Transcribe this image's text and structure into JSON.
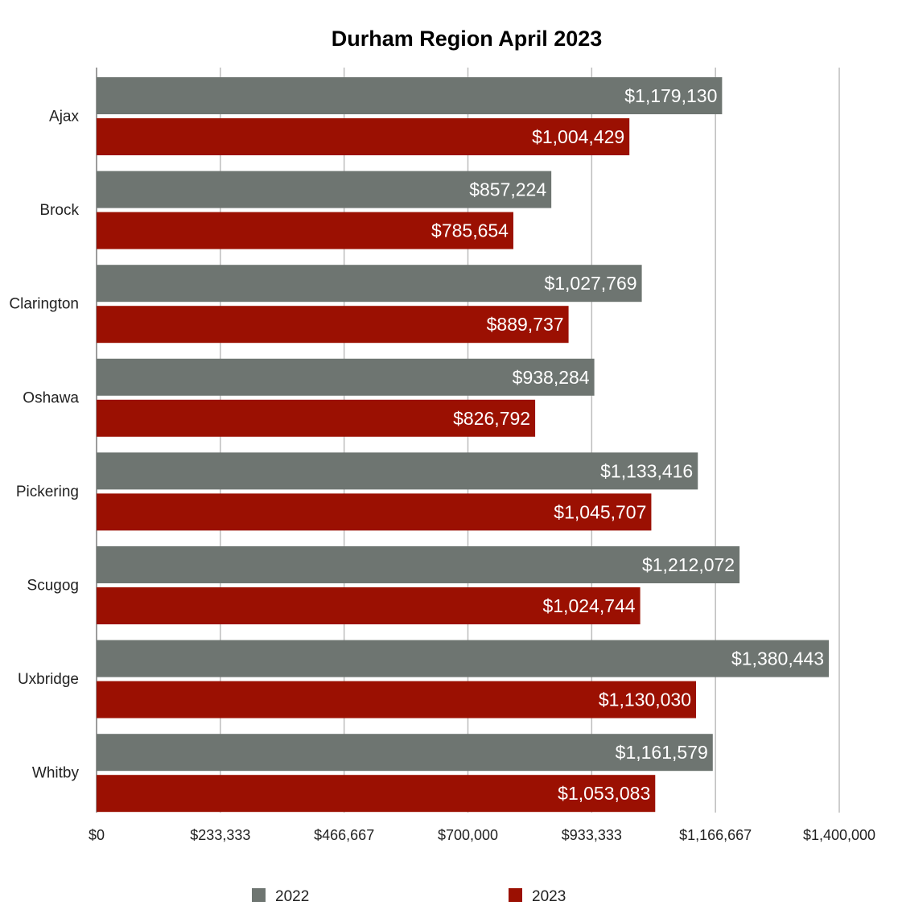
{
  "chart_data": {
    "type": "bar",
    "orientation": "horizontal",
    "title": "Durham Region April 2023",
    "categories": [
      "Ajax",
      "Brock",
      "Clarington",
      "Oshawa",
      "Pickering",
      "Scugog",
      "Uxbridge",
      "Whitby"
    ],
    "series": [
      {
        "name": "2022",
        "color": "#6e7571",
        "values": [
          1179130,
          857224,
          1027769,
          938284,
          1133416,
          1212072,
          1380443,
          1161579
        ],
        "labels": [
          "$1,179,130",
          "$857,224",
          "$1,027,769",
          "$938,284",
          "$1,133,416",
          "$1,212,072",
          "$1,380,443",
          "$1,161,579"
        ]
      },
      {
        "name": "2023",
        "color": "#9b1002",
        "values": [
          1004429,
          785654,
          889737,
          826792,
          1045707,
          1024744,
          1130030,
          1053083
        ],
        "labels": [
          "$1,004,429",
          "$785,654",
          "$889,737",
          "$826,792",
          "$1,045,707",
          "$1,024,744",
          "$1,130,030",
          "$1,053,083"
        ]
      }
    ],
    "xlim": [
      0,
      1400000
    ],
    "x_ticks": [
      "$0",
      "$233,333",
      "$466,667",
      "$700,000",
      "$933,333",
      "$1,166,667",
      "$1,400,000"
    ],
    "grid": true,
    "legend_position": "bottom"
  }
}
